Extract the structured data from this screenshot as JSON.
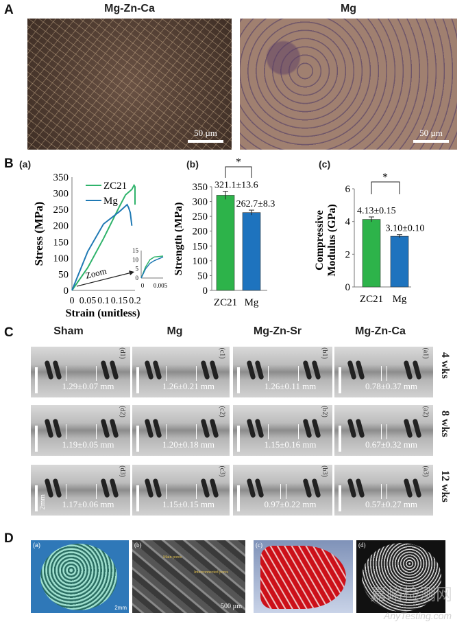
{
  "panelA": {
    "label": "A",
    "images": [
      {
        "title": "Mg-Zn-Ca",
        "scale": "50 µm"
      },
      {
        "title": "Mg",
        "scale": "50 µm"
      }
    ]
  },
  "panelB": {
    "label": "B"
  },
  "chart_data": [
    {
      "type": "line",
      "panel": "(a)",
      "xlabel": "Strain (unitless)",
      "ylabel": "Stress (MPa)",
      "xlim": [
        0,
        0.2
      ],
      "ylim": [
        0,
        350
      ],
      "xticks": [
        "0",
        "0.05",
        "0.1",
        "0.15",
        "0.2"
      ],
      "yticks": [
        "0",
        "50",
        "100",
        "150",
        "200",
        "250",
        "300",
        "350"
      ],
      "legend": "top-left",
      "annotation": "Zoom",
      "series": [
        {
          "name": "ZC21",
          "color": "#2fb36b",
          "x": [
            0,
            0.05,
            0.1,
            0.15,
            0.17,
            0.19,
            0.197,
            0.2,
            0.2
          ],
          "y": [
            0,
            70,
            160,
            258,
            295,
            312,
            325,
            320,
            265
          ]
        },
        {
          "name": "Mg",
          "color": "#1f79b4",
          "x": [
            0,
            0.05,
            0.1,
            0.15,
            0.175,
            0.18,
            0.185,
            0.19
          ],
          "y": [
            0,
            120,
            205,
            243,
            265,
            255,
            240,
            200
          ]
        }
      ],
      "inset": {
        "xlim": [
          0,
          0.005
        ],
        "ylim": [
          0,
          15
        ],
        "xticks": [
          "0",
          "0.005"
        ],
        "yticks": [
          "0",
          "5",
          "10",
          "15"
        ],
        "series": [
          {
            "name": "ZC21",
            "x": [
              0,
              0.001,
              0.002,
              0.003,
              0.005
            ],
            "y": [
              0,
              6,
              10,
              11.5,
              12
            ]
          },
          {
            "name": "Mg",
            "x": [
              0,
              0.001,
              0.002,
              0.003,
              0.005
            ],
            "y": [
              0,
              5,
              8,
              9.5,
              11.5
            ]
          }
        ]
      }
    },
    {
      "type": "bar",
      "panel": "(b)",
      "ylabel": "Strength (MPa)",
      "ylim": [
        0,
        350
      ],
      "yticks": [
        "0",
        "50",
        "100",
        "150",
        "200",
        "250",
        "300",
        "350"
      ],
      "categories": [
        "ZC21",
        "Mg"
      ],
      "values": [
        321.1,
        262.7
      ],
      "errors": [
        13.6,
        8.3
      ],
      "labels": [
        "321.1±13.6",
        "262.7±8.3"
      ],
      "colors": [
        "#2db34a",
        "#1e73be"
      ],
      "significance": "*"
    },
    {
      "type": "bar",
      "panel": "(c)",
      "ylabel": "Compressive Modulus (GPa)",
      "ylabel_lines": [
        "Compressive",
        "Modulus (GPa)"
      ],
      "ylim": [
        0,
        6
      ],
      "yticks": [
        "0",
        "2",
        "4",
        "6"
      ],
      "categories": [
        "ZC21",
        "Mg"
      ],
      "values": [
        4.13,
        3.1
      ],
      "errors": [
        0.15,
        0.1
      ],
      "labels": [
        "4.13±0.15",
        "3.10±0.10"
      ],
      "colors": [
        "#2db34a",
        "#1e73be"
      ],
      "significance": "*"
    }
  ],
  "panelC": {
    "label": "C",
    "columns": [
      "Sham",
      "Mg",
      "Mg-Zn-Sr",
      "Mg-Zn-Ca"
    ],
    "rows": [
      "4 wks",
      "8 wks",
      "12 wks"
    ],
    "scale": "2mm",
    "cells": [
      [
        {
          "tag": "(d1)",
          "value": "1.29±0.07 mm"
        },
        {
          "tag": "(c1)",
          "value": "1.26±0.21 mm"
        },
        {
          "tag": "(b1)",
          "value": "1.26±0.11 mm"
        },
        {
          "tag": "(a1)",
          "value": "0.78±0.37 mm"
        }
      ],
      [
        {
          "tag": "(d2)",
          "value": "1.19±0.05 mm"
        },
        {
          "tag": "(c2)",
          "value": "1.20±0.18 mm"
        },
        {
          "tag": "(b2)",
          "value": "1.15±0.16 mm"
        },
        {
          "tag": "(a2)",
          "value": "0.67±0.32 mm"
        }
      ],
      [
        {
          "tag": "(d3)",
          "value": "1.17±0.06 mm"
        },
        {
          "tag": "(c3)",
          "value": "1.15±0.15 mm"
        },
        {
          "tag": "(b3)",
          "value": "0.97±0.22 mm"
        },
        {
          "tag": "(a3)",
          "value": "0.57±0.27 mm"
        }
      ]
    ]
  },
  "panelD": {
    "label": "D",
    "images": [
      {
        "tag": "(a)",
        "scale": "2mm"
      },
      {
        "tag": "(b)",
        "scale": "500 µm",
        "annotations": [
          "Main pores",
          "Interconnected pores"
        ]
      },
      {
        "tag": "(c)"
      },
      {
        "tag": "(d)"
      }
    ]
  },
  "watermark": {
    "cn": "嘉峪检测网",
    "en": "AnyTesting.com"
  }
}
